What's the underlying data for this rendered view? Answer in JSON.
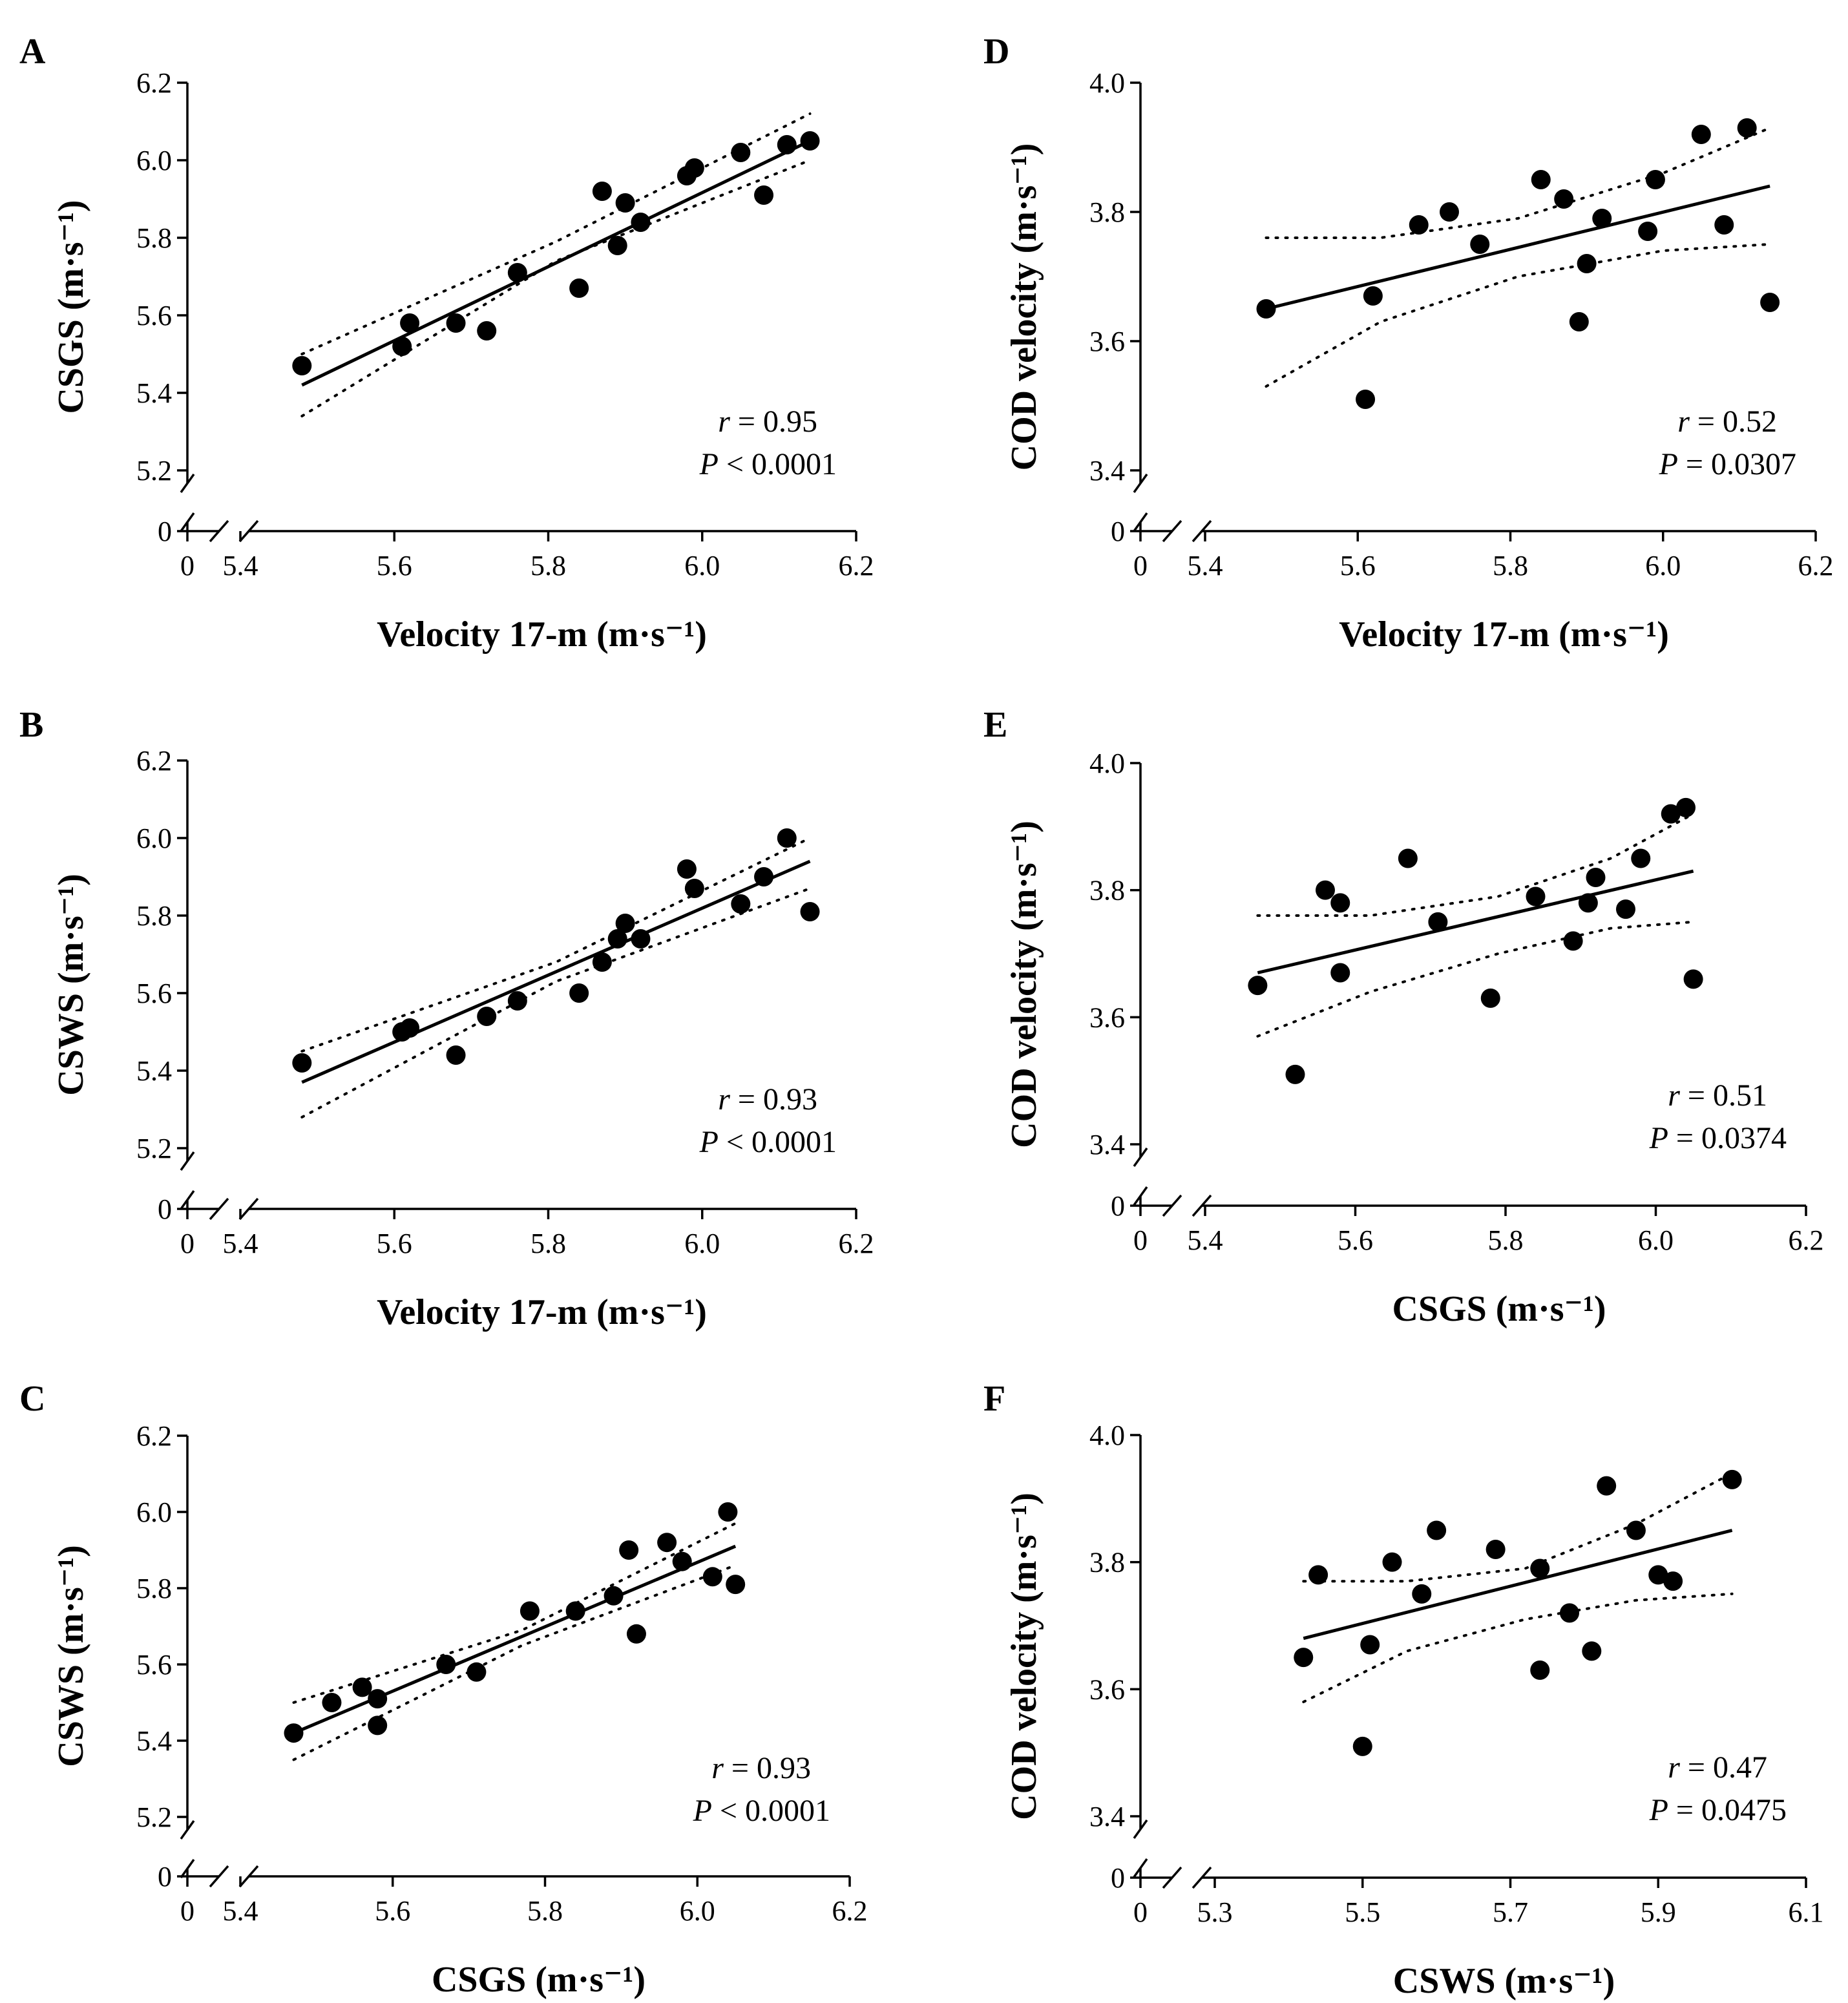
{
  "chart_data": [
    {
      "panel": "A",
      "type": "scatter",
      "xlabel": "Velocity 17-m",
      "xunit": "(m·s⁻¹)",
      "ylabel": "CSGS",
      "yunit": "(m·s⁻¹)",
      "xlim": [
        5.4,
        6.2
      ],
      "ylim": [
        5.2,
        6.2
      ],
      "xticks": [
        "5.4",
        "5.6",
        "5.8",
        "6.0",
        "6.2"
      ],
      "yticks": [
        "5.2",
        "5.4",
        "5.6",
        "5.8",
        "6.0",
        "6.2"
      ],
      "zero_label": "0",
      "points": [
        [
          5.48,
          5.47
        ],
        [
          5.61,
          5.52
        ],
        [
          5.62,
          5.58
        ],
        [
          5.68,
          5.58
        ],
        [
          5.72,
          5.56
        ],
        [
          5.76,
          5.71
        ],
        [
          5.84,
          5.67
        ],
        [
          5.87,
          5.92
        ],
        [
          5.89,
          5.78
        ],
        [
          5.9,
          5.89
        ],
        [
          5.92,
          5.84
        ],
        [
          5.98,
          5.96
        ],
        [
          5.99,
          5.98
        ],
        [
          6.05,
          6.02
        ],
        [
          6.08,
          5.91
        ],
        [
          6.11,
          6.04
        ],
        [
          6.14,
          6.05
        ]
      ],
      "fit": {
        "x0": 5.48,
        "y0": 5.42,
        "x1": 6.14,
        "y1": 6.05
      },
      "ci_upper": [
        [
          5.48,
          5.5
        ],
        [
          5.81,
          5.79
        ],
        [
          6.14,
          6.12
        ]
      ],
      "ci_lower": [
        [
          5.48,
          5.34
        ],
        [
          5.81,
          5.74
        ],
        [
          6.14,
          6.0
        ]
      ],
      "r_label": "r",
      "r_value": "= 0.95",
      "p_label": "P",
      "p_value": "< 0.0001"
    },
    {
      "panel": "B",
      "type": "scatter",
      "xlabel": "Velocity 17-m",
      "xunit": "(m·s⁻¹)",
      "ylabel": "CSWS",
      "yunit": "(m·s⁻¹)",
      "xlim": [
        5.4,
        6.2
      ],
      "ylim": [
        5.2,
        6.2
      ],
      "xticks": [
        "5.4",
        "5.6",
        "5.8",
        "6.0",
        "6.2"
      ],
      "yticks": [
        "5.2",
        "5.4",
        "5.6",
        "5.8",
        "6.0",
        "6.2"
      ],
      "zero_label": "0",
      "points": [
        [
          5.48,
          5.42
        ],
        [
          5.61,
          5.5
        ],
        [
          5.62,
          5.51
        ],
        [
          5.68,
          5.44
        ],
        [
          5.72,
          5.54
        ],
        [
          5.76,
          5.58
        ],
        [
          5.84,
          5.6
        ],
        [
          5.87,
          5.68
        ],
        [
          5.89,
          5.74
        ],
        [
          5.9,
          5.78
        ],
        [
          5.92,
          5.74
        ],
        [
          5.98,
          5.92
        ],
        [
          5.99,
          5.87
        ],
        [
          6.05,
          5.83
        ],
        [
          6.08,
          5.9
        ],
        [
          6.11,
          6.0
        ],
        [
          6.14,
          5.81
        ]
      ],
      "fit": {
        "x0": 5.48,
        "y0": 5.37,
        "x1": 6.14,
        "y1": 5.94
      },
      "ci_upper": [
        [
          5.48,
          5.45
        ],
        [
          5.81,
          5.68
        ],
        [
          6.14,
          6.0
        ]
      ],
      "ci_lower": [
        [
          5.48,
          5.28
        ],
        [
          5.81,
          5.63
        ],
        [
          6.14,
          5.87
        ]
      ],
      "r_label": "r",
      "r_value": "= 0.93",
      "p_label": "P",
      "p_value": "< 0.0001"
    },
    {
      "panel": "C",
      "type": "scatter",
      "xlabel": "CSGS",
      "xunit": "(m·s⁻¹)",
      "ylabel": "CSWS",
      "yunit": "(m·s⁻¹)",
      "xlim": [
        5.4,
        6.2
      ],
      "ylim": [
        5.2,
        6.2
      ],
      "xticks": [
        "5.4",
        "5.6",
        "5.8",
        "6.0",
        "6.2"
      ],
      "yticks": [
        "5.2",
        "5.4",
        "5.6",
        "5.8",
        "6.0",
        "6.2"
      ],
      "zero_label": "0",
      "points": [
        [
          5.47,
          5.42
        ],
        [
          5.52,
          5.5
        ],
        [
          5.56,
          5.54
        ],
        [
          5.58,
          5.51
        ],
        [
          5.58,
          5.44
        ],
        [
          5.67,
          5.6
        ],
        [
          5.71,
          5.58
        ],
        [
          5.78,
          5.74
        ],
        [
          5.84,
          5.74
        ],
        [
          5.89,
          5.78
        ],
        [
          5.91,
          5.9
        ],
        [
          5.92,
          5.68
        ],
        [
          5.96,
          5.92
        ],
        [
          5.98,
          5.87
        ],
        [
          6.02,
          5.83
        ],
        [
          6.04,
          6.0
        ],
        [
          6.05,
          5.81
        ]
      ],
      "fit": {
        "x0": 5.47,
        "y0": 5.42,
        "x1": 6.05,
        "y1": 5.91
      },
      "ci_upper": [
        [
          5.47,
          5.5
        ],
        [
          5.77,
          5.69
        ],
        [
          6.05,
          5.97
        ]
      ],
      "ci_lower": [
        [
          5.47,
          5.35
        ],
        [
          5.77,
          5.65
        ],
        [
          6.05,
          5.86
        ]
      ],
      "r_label": "r",
      "r_value": "= 0.93",
      "p_label": "P",
      "p_value": "< 0.0001"
    },
    {
      "panel": "D",
      "type": "scatter",
      "xlabel": "Velocity 17-m",
      "xunit": "(m·s⁻¹)",
      "ylabel": "COD velocity",
      "yunit": "(m·s⁻¹)",
      "xlim": [
        5.4,
        6.2
      ],
      "ylim": [
        3.4,
        4.0
      ],
      "xticks": [
        "5.4",
        "5.6",
        "5.8",
        "6.0",
        "6.2"
      ],
      "yticks": [
        "3.4",
        "3.6",
        "3.8",
        "4.0"
      ],
      "zero_label": "0",
      "points": [
        [
          5.48,
          3.65
        ],
        [
          5.61,
          3.51
        ],
        [
          5.62,
          3.67
        ],
        [
          5.68,
          3.78
        ],
        [
          5.72,
          3.8
        ],
        [
          5.76,
          3.75
        ],
        [
          5.84,
          3.85
        ],
        [
          5.87,
          3.82
        ],
        [
          5.89,
          3.63
        ],
        [
          5.9,
          3.72
        ],
        [
          5.92,
          3.79
        ],
        [
          5.98,
          3.77
        ],
        [
          5.99,
          3.85
        ],
        [
          6.05,
          3.92
        ],
        [
          6.08,
          3.78
        ],
        [
          6.11,
          3.93
        ],
        [
          6.14,
          3.66
        ]
      ],
      "fit": {
        "x0": 5.48,
        "y0": 3.65,
        "x1": 6.14,
        "y1": 3.84
      },
      "ci_upper": [
        [
          5.48,
          3.76
        ],
        [
          5.63,
          3.76
        ],
        [
          5.81,
          3.79
        ],
        [
          6.0,
          3.86
        ],
        [
          6.14,
          3.93
        ]
      ],
      "ci_lower": [
        [
          5.48,
          3.53
        ],
        [
          5.63,
          3.63
        ],
        [
          5.81,
          3.7
        ],
        [
          6.0,
          3.74
        ],
        [
          6.14,
          3.75
        ]
      ],
      "r_label": "r",
      "r_value": "= 0.52",
      "p_label": "P",
      "p_value": "= 0.0307"
    },
    {
      "panel": "E",
      "type": "scatter",
      "xlabel": "CSGS",
      "xunit": "(m·s⁻¹)",
      "ylabel": "COD velocity",
      "yunit": "(m·s⁻¹)",
      "xlim": [
        5.4,
        6.2
      ],
      "ylim": [
        3.4,
        4.0
      ],
      "xticks": [
        "5.4",
        "5.6",
        "5.8",
        "6.0",
        "6.2"
      ],
      "yticks": [
        "3.4",
        "3.6",
        "3.8",
        "4.0"
      ],
      "zero_label": "0",
      "points": [
        [
          5.47,
          3.65
        ],
        [
          5.52,
          3.51
        ],
        [
          5.56,
          3.8
        ],
        [
          5.58,
          3.78
        ],
        [
          5.58,
          3.67
        ],
        [
          5.67,
          3.85
        ],
        [
          5.71,
          3.75
        ],
        [
          5.78,
          3.63
        ],
        [
          5.84,
          3.79
        ],
        [
          5.89,
          3.72
        ],
        [
          5.91,
          3.78
        ],
        [
          5.92,
          3.82
        ],
        [
          5.96,
          3.77
        ],
        [
          5.98,
          3.85
        ],
        [
          6.02,
          3.92
        ],
        [
          6.04,
          3.93
        ],
        [
          6.05,
          3.66
        ]
      ],
      "fit": {
        "x0": 5.47,
        "y0": 3.67,
        "x1": 6.05,
        "y1": 3.83
      },
      "ci_upper": [
        [
          5.47,
          3.76
        ],
        [
          5.62,
          3.76
        ],
        [
          5.79,
          3.79
        ],
        [
          5.94,
          3.85
        ],
        [
          6.05,
          3.92
        ]
      ],
      "ci_lower": [
        [
          5.47,
          3.57
        ],
        [
          5.62,
          3.64
        ],
        [
          5.79,
          3.7
        ],
        [
          5.94,
          3.74
        ],
        [
          6.05,
          3.75
        ]
      ],
      "r_label": "r",
      "r_value": "= 0.51",
      "p_label": "P",
      "p_value": "= 0.0374"
    },
    {
      "panel": "F",
      "type": "scatter",
      "xlabel": "CSWS",
      "xunit": "(m·s⁻¹)",
      "ylabel": "COD velocity",
      "yunit": "(m·s⁻¹)",
      "xlim": [
        5.3,
        6.1
      ],
      "ylim": [
        3.4,
        4.0
      ],
      "xticks": [
        "5.3",
        "5.5",
        "5.7",
        "5.9",
        "6.1"
      ],
      "yticks": [
        "3.4",
        "3.6",
        "3.8",
        "4.0"
      ],
      "zero_label": "0",
      "points": [
        [
          5.42,
          3.65
        ],
        [
          5.44,
          3.78
        ],
        [
          5.5,
          3.51
        ],
        [
          5.51,
          3.67
        ],
        [
          5.54,
          3.8
        ],
        [
          5.58,
          3.75
        ],
        [
          5.6,
          3.85
        ],
        [
          5.68,
          3.82
        ],
        [
          5.74,
          3.79
        ],
        [
          5.74,
          3.63
        ],
        [
          5.78,
          3.72
        ],
        [
          5.81,
          3.66
        ],
        [
          5.83,
          3.92
        ],
        [
          5.87,
          3.85
        ],
        [
          5.9,
          3.78
        ],
        [
          5.92,
          3.77
        ],
        [
          6.0,
          3.93
        ]
      ],
      "fit": {
        "x0": 5.42,
        "y0": 3.68,
        "x1": 6.0,
        "y1": 3.85
      },
      "ci_upper": [
        [
          5.42,
          3.77
        ],
        [
          5.56,
          3.77
        ],
        [
          5.72,
          3.79
        ],
        [
          5.87,
          3.86
        ],
        [
          6.0,
          3.94
        ]
      ],
      "ci_lower": [
        [
          5.42,
          3.58
        ],
        [
          5.56,
          3.66
        ],
        [
          5.72,
          3.71
        ],
        [
          5.87,
          3.74
        ],
        [
          6.0,
          3.75
        ]
      ],
      "r_label": "r",
      "r_value": "= 0.47",
      "p_label": "P",
      "p_value": "= 0.0475"
    }
  ]
}
